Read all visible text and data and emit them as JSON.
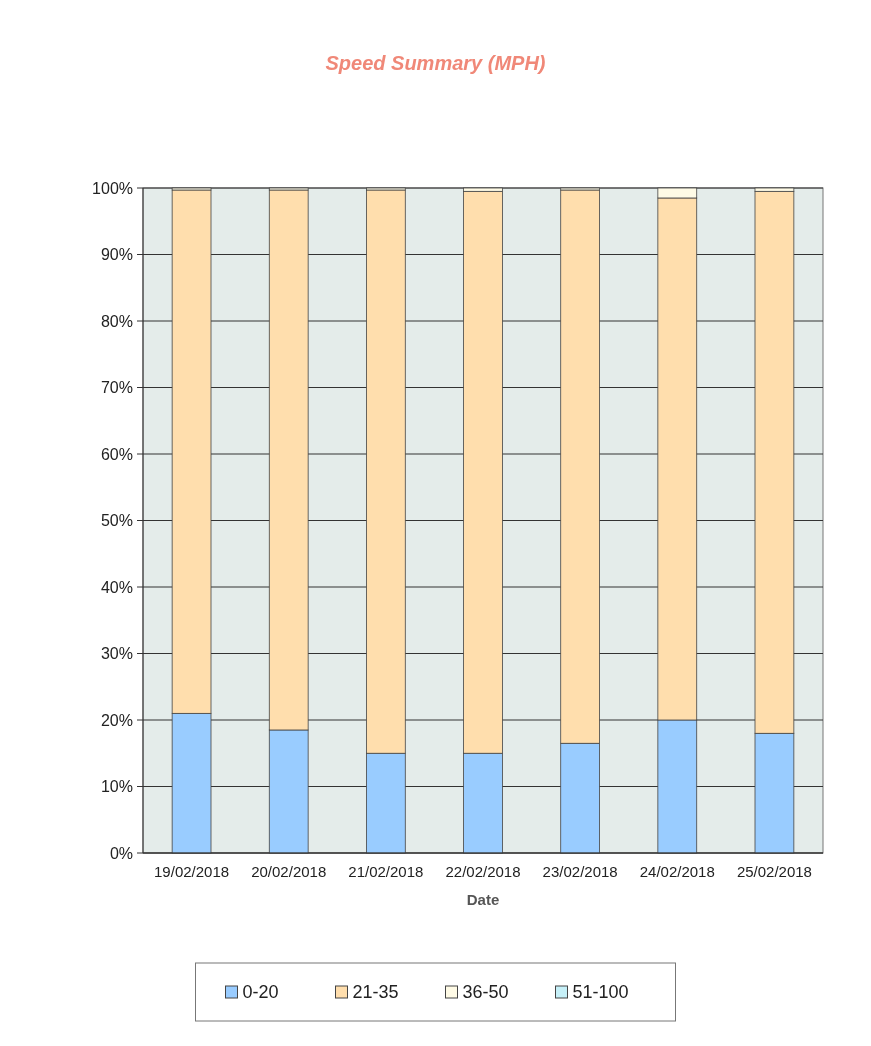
{
  "chart_data": {
    "type": "bar",
    "title": "Speed Summary (MPH)",
    "xlabel": "Date",
    "stacked": true,
    "categories": [
      "19/02/2018",
      "20/02/2018",
      "21/02/2018",
      "22/02/2018",
      "23/02/2018",
      "24/02/2018",
      "25/02/2018"
    ],
    "series": [
      {
        "name": "0-20",
        "color": "#99ccff",
        "values": [
          21,
          18.5,
          15,
          15,
          16.5,
          20,
          18
        ]
      },
      {
        "name": "21-35",
        "color": "#ffdead",
        "values": [
          78.7,
          81.2,
          84.7,
          84.5,
          83.2,
          78.5,
          81.5
        ]
      },
      {
        "name": "36-50",
        "color": "#fffbe6",
        "values": [
          0.3,
          0.3,
          0.3,
          0.5,
          0.3,
          1.5,
          0.5
        ]
      },
      {
        "name": "51-100",
        "color": "#c6f0f8",
        "values": [
          0,
          0,
          0,
          0,
          0,
          0,
          0
        ]
      }
    ],
    "ylim": [
      0,
      100
    ],
    "yticks": [
      {
        "value": 0,
        "label": "0%"
      },
      {
        "value": 10,
        "label": "10%"
      },
      {
        "value": 20,
        "label": "20%"
      },
      {
        "value": 30,
        "label": "30%"
      },
      {
        "value": 40,
        "label": "40%"
      },
      {
        "value": 50,
        "label": "50%"
      },
      {
        "value": 60,
        "label": "60%"
      },
      {
        "value": 70,
        "label": "70%"
      },
      {
        "value": 80,
        "label": "80%"
      },
      {
        "value": 90,
        "label": "90%"
      },
      {
        "value": 100,
        "label": "100%"
      }
    ],
    "grid": "y",
    "legend": "bottom"
  }
}
